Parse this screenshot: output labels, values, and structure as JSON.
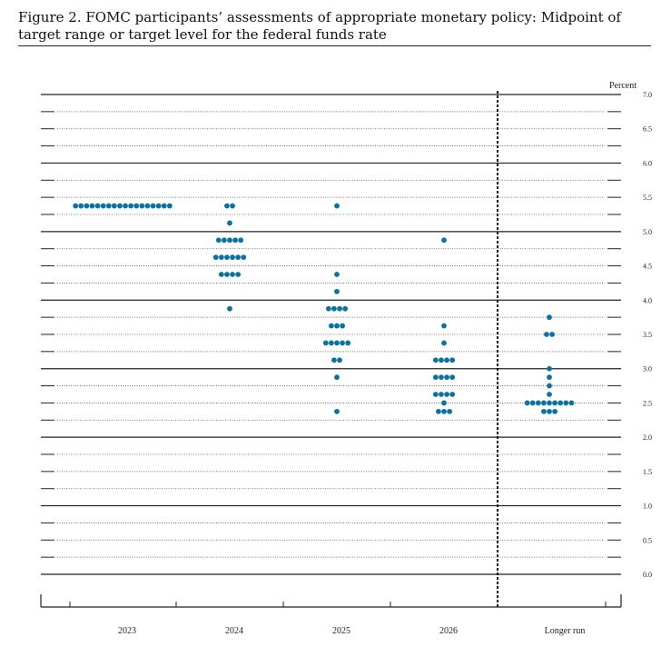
{
  "figure": {
    "title": "Figure 2.  FOMC participants’ assessments of appropriate monetary policy:  Midpoint of target range or target level for the federal funds rate",
    "unit_label": "Percent"
  },
  "colors": {
    "dot": "#0a72a0",
    "solid_line": "#222222",
    "dotted_line": "#555555",
    "separator": "#000000"
  },
  "chart_data": {
    "type": "scatter",
    "title": "Figure 2.  FOMC participants’ assessments of appropriate monetary policy:  Midpoint of target range or target level for the federal funds rate",
    "xlabel": "",
    "ylabel": "Percent",
    "ylim": [
      0,
      7
    ],
    "yticks": [
      "0.0",
      "0.5",
      "1.0",
      "1.5",
      "2.0",
      "2.5",
      "3.0",
      "3.5",
      "4.0",
      "4.5",
      "5.0",
      "5.5",
      "6.0",
      "6.5",
      "7.0"
    ],
    "grid": "solid at whole percents, dotted at 0.25 steps",
    "categories": [
      "2023",
      "2024",
      "2025",
      "2026",
      "Longer run"
    ],
    "groups": [
      {
        "label": "2023",
        "dots": [
          {
            "y": 5.375,
            "count": 18
          }
        ]
      },
      {
        "label": "2024",
        "dots": [
          {
            "y": 5.375,
            "count": 2
          },
          {
            "y": 5.125,
            "count": 1
          },
          {
            "y": 4.875,
            "count": 5
          },
          {
            "y": 4.625,
            "count": 6
          },
          {
            "y": 4.375,
            "count": 4
          },
          {
            "y": 3.875,
            "count": 1
          }
        ]
      },
      {
        "label": "2025",
        "dots": [
          {
            "y": 5.375,
            "count": 1
          },
          {
            "y": 4.375,
            "count": 1
          },
          {
            "y": 4.125,
            "count": 1
          },
          {
            "y": 3.875,
            "count": 4
          },
          {
            "y": 3.625,
            "count": 3
          },
          {
            "y": 3.375,
            "count": 5
          },
          {
            "y": 3.125,
            "count": 2
          },
          {
            "y": 2.875,
            "count": 1
          },
          {
            "y": 2.375,
            "count": 1
          }
        ]
      },
      {
        "label": "2026",
        "dots": [
          {
            "y": 4.875,
            "count": 1
          },
          {
            "y": 3.625,
            "count": 1
          },
          {
            "y": 3.375,
            "count": 1
          },
          {
            "y": 3.125,
            "count": 4
          },
          {
            "y": 2.875,
            "count": 4
          },
          {
            "y": 2.625,
            "count": 4
          },
          {
            "y": 2.5,
            "count": 1
          },
          {
            "y": 2.375,
            "count": 3
          }
        ]
      },
      {
        "label": "Longer run",
        "dots": [
          {
            "y": 3.75,
            "count": 1
          },
          {
            "y": 3.5,
            "count": 2
          },
          {
            "y": 3.0,
            "count": 1
          },
          {
            "y": 2.875,
            "count": 1
          },
          {
            "y": 2.75,
            "count": 1
          },
          {
            "y": 2.625,
            "count": 1
          },
          {
            "y": 2.5,
            "count": 9
          },
          {
            "y": 2.375,
            "count": 3
          }
        ]
      }
    ]
  }
}
